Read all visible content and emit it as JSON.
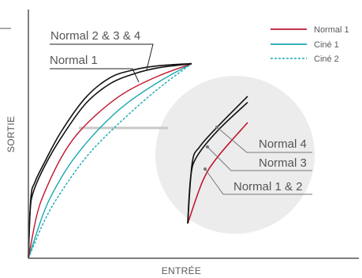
{
  "chart_data": {
    "type": "line",
    "xlabel": "ENTRÉE",
    "ylabel": "SORTIE",
    "xlim": [
      0,
      1
    ],
    "ylim": [
      0,
      1
    ],
    "colors": {
      "normal": "#111111",
      "normal1": "#c0182f",
      "cine1": "#1aa8b2",
      "cine2": "#1aa8b2",
      "axis": "#555555",
      "leader": "#c8c8c8",
      "zoom": "#ececec"
    },
    "legend": {
      "placement": "top-right",
      "items": [
        {
          "label": "Normal 1",
          "color": "#c0182f",
          "dash": "solid"
        },
        {
          "label": "Ciné 1",
          "color": "#1aa8b2",
          "dash": "solid"
        },
        {
          "label": "Ciné 2",
          "color": "#1aa8b2",
          "dash": "dashed"
        }
      ]
    },
    "series": [
      {
        "key": "n4",
        "color": "#111111",
        "dash": "solid",
        "points": [
          [
            0,
            0
          ],
          [
            0.015,
            0.3
          ],
          [
            0.04,
            0.38
          ],
          [
            0.1,
            0.48
          ],
          [
            0.2,
            0.63
          ],
          [
            0.35,
            0.8
          ],
          [
            0.5,
            0.9
          ],
          [
            0.65,
            0.94
          ],
          [
            0.8,
            0.96
          ],
          [
            1,
            0.97
          ]
        ]
      },
      {
        "key": "n3",
        "color": "#111111",
        "dash": "solid",
        "points": [
          [
            0,
            0
          ],
          [
            0.01,
            0.23
          ],
          [
            0.03,
            0.33
          ],
          [
            0.1,
            0.46
          ],
          [
            0.2,
            0.6
          ],
          [
            0.35,
            0.77
          ],
          [
            0.5,
            0.87
          ],
          [
            0.65,
            0.92
          ],
          [
            0.8,
            0.95
          ],
          [
            1,
            0.97
          ]
        ]
      },
      {
        "key": "n1",
        "color": "#c0182f",
        "dash": "solid",
        "points": [
          [
            0,
            0
          ],
          [
            0.05,
            0.21
          ],
          [
            0.1,
            0.33
          ],
          [
            0.2,
            0.5
          ],
          [
            0.3,
            0.62
          ],
          [
            0.45,
            0.74
          ],
          [
            0.6,
            0.83
          ],
          [
            0.8,
            0.91
          ],
          [
            1,
            0.97
          ]
        ]
      },
      {
        "key": "c1",
        "color": "#1aa8b2",
        "dash": "solid",
        "points": [
          [
            0,
            0
          ],
          [
            0.1,
            0.24
          ],
          [
            0.2,
            0.4
          ],
          [
            0.3,
            0.52
          ],
          [
            0.45,
            0.66
          ],
          [
            0.6,
            0.77
          ],
          [
            0.8,
            0.88
          ],
          [
            1,
            0.97
          ]
        ]
      },
      {
        "key": "c2",
        "color": "#1aa8b2",
        "dash": "dashed",
        "points": [
          [
            0,
            0
          ],
          [
            0.1,
            0.19
          ],
          [
            0.2,
            0.33
          ],
          [
            0.35,
            0.5
          ],
          [
            0.5,
            0.63
          ],
          [
            0.7,
            0.78
          ],
          [
            0.85,
            0.88
          ],
          [
            1,
            0.97
          ]
        ]
      }
    ],
    "annotations": [
      {
        "text": "Normal 2 & 3 & 4",
        "key": "normal234"
      },
      {
        "text": "Normal 1",
        "key": "normal1"
      },
      {
        "text": "Normal 4",
        "key": "zoom_n4"
      },
      {
        "text": "Normal 3",
        "key": "zoom_n3"
      },
      {
        "text": "Normal 1 & 2",
        "key": "zoom_n12"
      }
    ]
  }
}
